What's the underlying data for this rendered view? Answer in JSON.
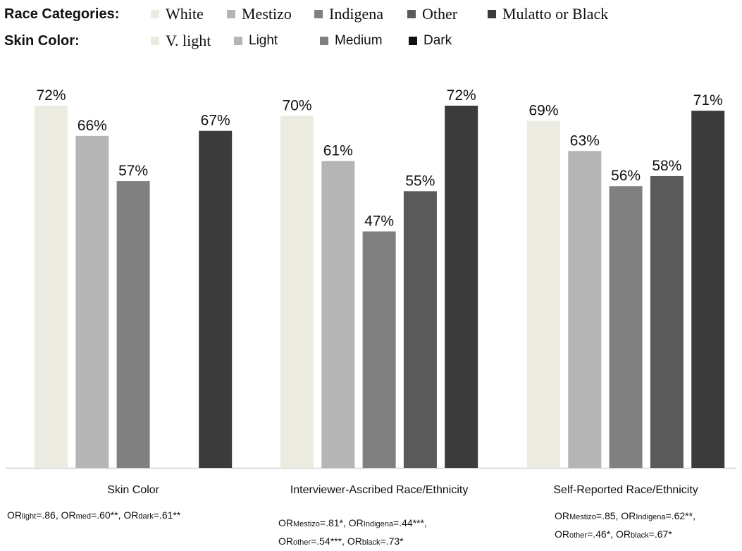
{
  "legend": {
    "race_title": "Race Categories:",
    "race_items": [
      {
        "label": "White",
        "color": "#ecebe1"
      },
      {
        "label": "Mestizo",
        "color": "#b5b5b5"
      },
      {
        "label": "Indigena",
        "color": "#808080"
      },
      {
        "label": "Other",
        "color": "#5a5a5a"
      },
      {
        "label": "Mulatto or Black",
        "color": "#3b3b3b"
      }
    ],
    "skin_title": "Skin Color:",
    "skin_items": [
      {
        "label": "V. light",
        "color": "#ecebe1"
      },
      {
        "label": "Light",
        "color": "#b5b5b5"
      },
      {
        "label": "Medium",
        "color": "#808080"
      },
      {
        "label": "Dark",
        "color": "#111111"
      }
    ]
  },
  "notes": {
    "skin": [
      [
        [
          "OR",
          ""
        ],
        [
          "light",
          "sub"
        ],
        [
          "=.86, OR",
          ""
        ],
        [
          "med",
          "sub"
        ],
        [
          "=.60**, OR",
          ""
        ],
        [
          "dark",
          "sub"
        ],
        [
          "=.61**",
          ""
        ]
      ]
    ],
    "ascribed": [
      [
        [
          "OR",
          ""
        ],
        [
          "Mestizo",
          "sub"
        ],
        [
          "=.81*, OR",
          ""
        ],
        [
          "Indigena",
          "sub"
        ],
        [
          "=.44***,",
          ""
        ]
      ],
      [
        [
          "OR",
          ""
        ],
        [
          "other",
          "sub"
        ],
        [
          "=.54***, OR",
          ""
        ],
        [
          "black",
          "sub"
        ],
        [
          "=.73*",
          ""
        ]
      ]
    ],
    "self": [
      [
        [
          "OR",
          ""
        ],
        [
          "Mestizo",
          "sub"
        ],
        [
          "=.85, OR",
          ""
        ],
        [
          "Indigena",
          "sub"
        ],
        [
          "=.62**,",
          ""
        ]
      ],
      [
        [
          "OR",
          ""
        ],
        [
          "other",
          "sub"
        ],
        [
          "=.46*, OR",
          ""
        ],
        [
          "black",
          "sub"
        ],
        [
          "=.67*",
          ""
        ]
      ]
    ]
  },
  "chart_data": {
    "type": "bar",
    "title": "",
    "xlabel": "",
    "ylabel": "",
    "ylim": [
      0,
      72
    ],
    "grid": false,
    "legend_position": "top",
    "categories": [
      "Skin Color",
      "Interviewer-Ascribed Race/Ethnicity",
      "Self-Reported Race/Ethnicity"
    ],
    "slot_colors": [
      "#ecebe1",
      "#b5b5b5",
      "#808080",
      "#5a5a5a",
      "#3b3b3b"
    ],
    "groups": [
      {
        "category": "Skin Color",
        "bars": [
          {
            "label": "72%",
            "value": 72
          },
          {
            "label": "66%",
            "value": 66
          },
          {
            "label": "57%",
            "value": 57
          },
          null,
          {
            "label": "67%",
            "value": 67
          }
        ]
      },
      {
        "category": "Interviewer-Ascribed Race/Ethnicity",
        "bars": [
          {
            "label": "70%",
            "value": 70
          },
          {
            "label": "61%",
            "value": 61
          },
          {
            "label": "47%",
            "value": 47
          },
          {
            "label": "55%",
            "value": 55
          },
          {
            "label": "72%",
            "value": 72
          }
        ]
      },
      {
        "category": "Self-Reported Race/Ethnicity",
        "bars": [
          {
            "label": "69%",
            "value": 69
          },
          {
            "label": "63%",
            "value": 63
          },
          {
            "label": "56%",
            "value": 56
          },
          {
            "label": "58%",
            "value": 58
          },
          {
            "label": "71%",
            "value": 71
          }
        ]
      }
    ]
  }
}
